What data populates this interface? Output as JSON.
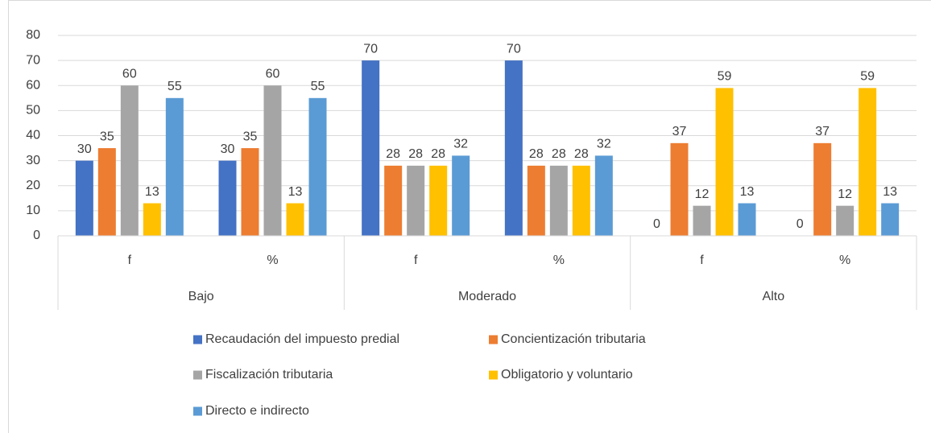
{
  "chart_data": {
    "type": "bar",
    "groups": [
      "Bajo",
      "Moderado",
      "Alto"
    ],
    "categories": [
      "f",
      "%",
      "f",
      "%",
      "f",
      "%"
    ],
    "series": [
      {
        "name": "Recaudación del impuesto predial",
        "color": "#4472c4",
        "values": [
          30,
          30,
          70,
          70,
          0,
          0
        ]
      },
      {
        "name": "Concientización tributaria",
        "color": "#ed7d31",
        "values": [
          35,
          35,
          28,
          28,
          37,
          37
        ]
      },
      {
        "name": "Fiscalización tributaria",
        "color": "#a5a5a5",
        "values": [
          60,
          60,
          28,
          28,
          12,
          12
        ]
      },
      {
        "name": "Obligatorio y voluntario",
        "color": "#ffc000",
        "values": [
          13,
          13,
          28,
          28,
          59,
          59
        ]
      },
      {
        "name": "Directo e indirecto",
        "color": "#5b9bd5",
        "values": [
          55,
          55,
          32,
          32,
          13,
          13
        ]
      }
    ],
    "ylim": [
      0,
      80
    ],
    "yticks": [
      0,
      10,
      20,
      30,
      40,
      50,
      60,
      70,
      80
    ],
    "grid": true
  }
}
